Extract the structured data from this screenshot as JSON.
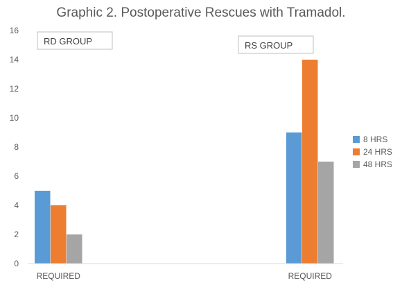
{
  "chart_data": {
    "type": "bar",
    "title": "Graphic 2. Postoperative Rescues with Tramadol.",
    "xlabel": "",
    "ylabel": "",
    "ylim": [
      0,
      16
    ],
    "yticks": [
      "0",
      "2",
      "4",
      "6",
      "8",
      "10",
      "12",
      "14",
      "16"
    ],
    "grid": false,
    "legend_position": "right",
    "categories": [
      "REQUIRED",
      "REQUIRED"
    ],
    "annotations": [
      "RD GROUP",
      "RS GROUP"
    ],
    "series": [
      {
        "name": "8 HRS",
        "color": "#5b9bd5",
        "values": [
          5,
          9
        ]
      },
      {
        "name": "24 HRS",
        "color": "#ed7d31",
        "values": [
          4,
          14
        ]
      },
      {
        "name": "48 HRS",
        "color": "#a5a5a5",
        "values": [
          2,
          7
        ]
      }
    ]
  }
}
